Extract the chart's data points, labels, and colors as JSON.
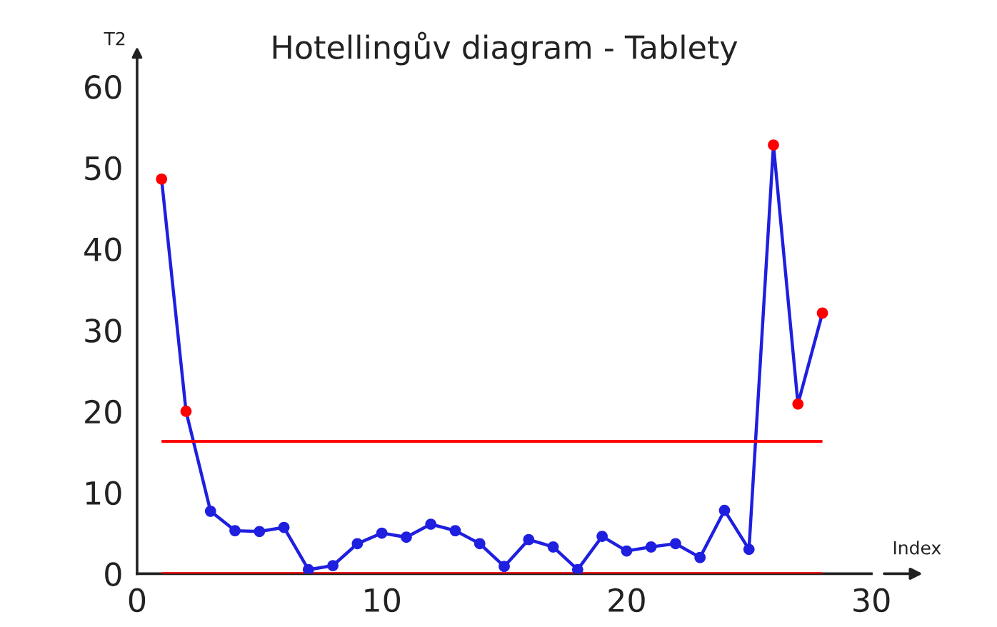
{
  "chart_data": {
    "type": "line",
    "title": "Hotellingův diagram - Tablety",
    "xlabel": "Index",
    "ylabel": "T2",
    "x": [
      1,
      2,
      3,
      4,
      5,
      6,
      7,
      8,
      9,
      10,
      11,
      12,
      13,
      14,
      15,
      16,
      17,
      18,
      19,
      20,
      21,
      22,
      23,
      24,
      25,
      26,
      27,
      28
    ],
    "series": [
      {
        "color": "#1f1fe0",
        "values": [
          48.6,
          20.0,
          7.7,
          5.3,
          5.2,
          5.7,
          0.5,
          1.0,
          3.7,
          5.0,
          4.5,
          6.1,
          5.3,
          3.7,
          0.9,
          4.2,
          3.3,
          0.5,
          4.6,
          2.8,
          3.3,
          3.7,
          2.0,
          7.8,
          3.0,
          52.8,
          20.9,
          32.1
        ],
        "colors": [
          "#ff0000",
          "#ff0000",
          "#1f1fe0",
          "#1f1fe0",
          "#1f1fe0",
          "#1f1fe0",
          "#1f1fe0",
          "#1f1fe0",
          "#1f1fe0",
          "#1f1fe0",
          "#1f1fe0",
          "#1f1fe0",
          "#1f1fe0",
          "#1f1fe0",
          "#1f1fe0",
          "#1f1fe0",
          "#1f1fe0",
          "#1f1fe0",
          "#1f1fe0",
          "#1f1fe0",
          "#1f1fe0",
          "#1f1fe0",
          "#1f1fe0",
          "#1f1fe0",
          "#1f1fe0",
          "#ff0000",
          "#ff0000",
          "#ff0000"
        ]
      }
    ],
    "xlim": [
      0,
      30
    ],
    "xticks": [
      0,
      10,
      20,
      30
    ],
    "ylim": [
      0,
      60
    ],
    "yticks": [
      0,
      10,
      20,
      30,
      40,
      50,
      60
    ],
    "ref_lines": [
      {
        "axis": "y",
        "value": 16.3,
        "color": "#ff0000"
      },
      {
        "axis": "y",
        "value": 0,
        "color": "#ff0000"
      }
    ],
    "marker": "circle",
    "line_style": "solid",
    "grid": false,
    "legend": false
  }
}
